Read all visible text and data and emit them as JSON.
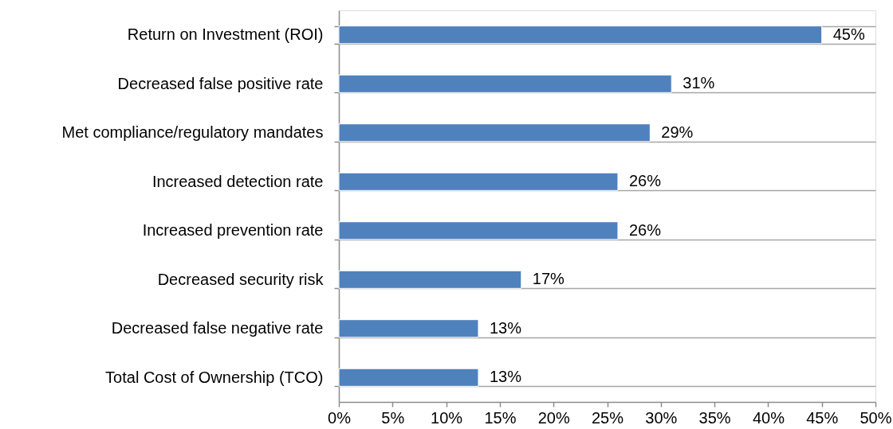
{
  "chart_data": {
    "type": "bar",
    "orientation": "horizontal",
    "categories": [
      "Return on Investment (ROI)",
      "Decreased false positive rate",
      "Met compliance/regulatory mandates",
      "Increased detection rate",
      "Increased prevention rate",
      "Decreased security risk",
      "Decreased false negative rate",
      "Total Cost of Ownership (TCO)"
    ],
    "values": [
      45,
      31,
      29,
      26,
      26,
      17,
      13,
      13
    ],
    "value_labels": [
      "45%",
      "31%",
      "29%",
      "26%",
      "26%",
      "17%",
      "13%",
      "13%"
    ],
    "color": "#4f81bd",
    "xlim": [
      0,
      50
    ],
    "xticks": [
      {
        "value": 0,
        "label": "0%"
      },
      {
        "value": 5,
        "label": "5%"
      },
      {
        "value": 10,
        "label": "10%"
      },
      {
        "value": 15,
        "label": "15%"
      },
      {
        "value": 20,
        "label": "20%"
      },
      {
        "value": 25,
        "label": "25%"
      },
      {
        "value": 30,
        "label": "30%"
      },
      {
        "value": 35,
        "label": "35%"
      },
      {
        "value": 40,
        "label": "40%"
      },
      {
        "value": 45,
        "label": "45%"
      },
      {
        "value": 50,
        "label": "50%"
      }
    ],
    "grid": "y"
  }
}
